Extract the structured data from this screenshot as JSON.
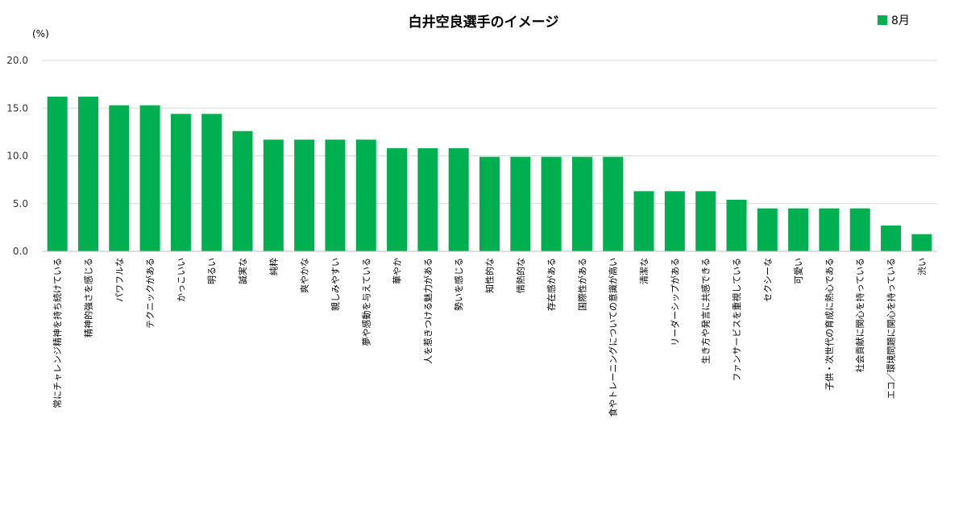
{
  "chart_data": {
    "type": "bar",
    "title": "白井空良選手のイメージ",
    "ylabel": "(%)",
    "xlabel": "",
    "ylim": [
      0,
      20
    ],
    "yticks": [
      "0.0",
      "5.0",
      "10.0",
      "15.0",
      "20.0"
    ],
    "grid": true,
    "legend_position": "top-right",
    "colors": {
      "series": "#00B050",
      "grid": "#D9D9D9",
      "axis": "#BFBFBF"
    },
    "categories": [
      "常にチャレンジ精神を持ち続けている",
      "精神的強さを感じる",
      "パワフルな",
      "テクニックがある",
      "かっこいい",
      "明るい",
      "誠実な",
      "純粋",
      "爽やかな",
      "親しみやすい",
      "夢や感動を与えている",
      "華やか",
      "人を惹きつける魅力がある",
      "勢いを感じる",
      "知性的な",
      "情熱的な",
      "存在感がある",
      "国際性がある",
      "食やトレーニングについての意識が高い",
      "清潔な",
      "リーダーシップがある",
      "生き方や発言に共感できる",
      "ファンサービスを重視している",
      "セクシーな",
      "可愛い",
      "子供・次世代の育成に熱心である",
      "社会貢献に関心を持っている",
      "エコ／環境問題に関心を持っている",
      "渋い"
    ],
    "series": [
      {
        "name": "8月",
        "values": [
          16.2,
          16.2,
          15.3,
          15.3,
          14.4,
          14.4,
          12.6,
          11.7,
          11.7,
          11.7,
          11.7,
          10.8,
          10.8,
          10.8,
          9.9,
          9.9,
          9.9,
          9.9,
          9.9,
          6.3,
          6.3,
          6.3,
          5.4,
          4.5,
          4.5,
          4.5,
          4.5,
          2.7,
          1.8
        ]
      }
    ]
  }
}
